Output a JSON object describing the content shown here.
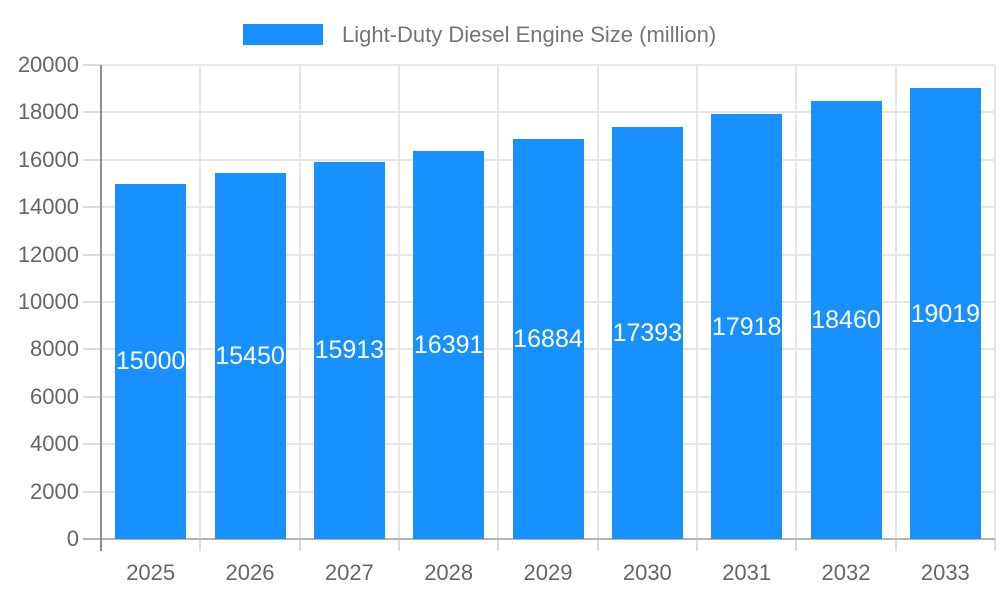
{
  "legend": {
    "label": "Light-Duty Diesel Engine Size (million)",
    "swatch": "blue-rect"
  },
  "chart_data": {
    "type": "bar",
    "title": "Light-Duty Diesel Engine Size (million)",
    "categories": [
      "2025",
      "2026",
      "2027",
      "2028",
      "2029",
      "2030",
      "2031",
      "2032",
      "2033"
    ],
    "values": [
      15000,
      15450,
      15913,
      16391,
      16884,
      17393,
      17918,
      18460,
      19019
    ],
    "series": [
      {
        "name": "Light-Duty Diesel Engine Size (million)",
        "values": [
          15000,
          15450,
          15913,
          16391,
          16884,
          17393,
          17918,
          18460,
          19019
        ]
      }
    ],
    "xlabel": "",
    "ylabel": "",
    "ylim": [
      0,
      20000
    ],
    "ytick_step": 2000,
    "grid": true,
    "legend_position": "top-center",
    "value_label_position": "inside-middle"
  },
  "colors": {
    "bar": "#1890ff",
    "axis_text": "#666666",
    "legend_text": "#757575",
    "gridline": "#e6e6e6",
    "y_axis_line": "#8f8f8f",
    "zero_line": "#b3b3b3",
    "tick_mark": "#dcdcdc",
    "value_label": "#ffffff",
    "background": "#ffffff"
  }
}
